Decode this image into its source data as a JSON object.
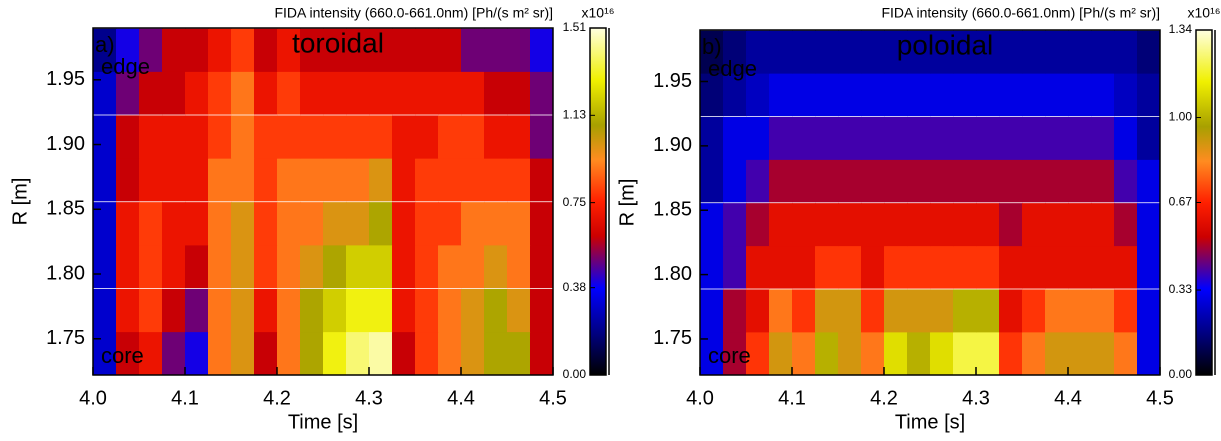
{
  "chart_data": [
    {
      "type": "heatmap",
      "title": "FIDA intensity (660.0-661.0nm) [Ph/(s m² sr)]",
      "x_label": "Time [s]",
      "y_label": "R [m]",
      "annotations": [
        "a)",
        "toroidal",
        "edge",
        "core"
      ],
      "colorbar_label": "x10¹⁶",
      "xlim": [
        4.0,
        4.5
      ],
      "xticks": [
        {
          "value": 4,
          "label": "4.0"
        },
        4.1,
        4.2,
        4.3,
        4.4,
        {
          "value": 4.5,
          "label": "4.5"
        }
      ],
      "ylim": [
        1.722,
        1.99
      ],
      "yticks": [
        1.75,
        {
          "value": 1.8,
          "label": "1.80"
        },
        1.85,
        {
          "value": 1.9,
          "label": "1.90"
        },
        1.95
      ],
      "clim": [
        0,
        1.51
      ],
      "cticks": [
        {
          "value": 0,
          "label": "0.00"
        },
        0.38,
        0.75,
        1.13,
        1.51
      ],
      "colormap": [
        {
          "at": 0,
          "color": "#000000"
        },
        {
          "at": 0.12,
          "color": "#000080"
        },
        {
          "at": 0.25,
          "color": "#0000ff"
        },
        {
          "at": 0.4,
          "color": "#cc0000"
        },
        {
          "at": 0.5,
          "color": "#ff2000"
        },
        {
          "at": 0.62,
          "color": "#ff8c20"
        },
        {
          "at": 0.72,
          "color": "#a8a000"
        },
        {
          "at": 0.85,
          "color": "#f0f000"
        },
        {
          "at": 1,
          "color": "#ffffe0"
        }
      ],
      "x": [
        4.0125,
        4.0375,
        4.0625,
        4.0875,
        4.1125,
        4.1375,
        4.1625,
        4.1875,
        4.2125,
        4.2375,
        4.2625,
        4.2875,
        4.3125,
        4.3375,
        4.3625,
        4.3875,
        4.4125,
        4.4375,
        4.4625,
        4.4875
      ],
      "y": [
        1.739,
        1.772,
        1.806,
        1.839,
        1.873,
        1.906,
        1.94,
        1.973
      ],
      "z": [
        [
          0.3,
          0.6,
          0.7,
          0.5,
          0.4,
          0.9,
          1.0,
          0.6,
          0.9,
          1.1,
          1.3,
          1.4,
          1.45,
          0.6,
          0.8,
          0.9,
          1.0,
          1.1,
          1.1,
          0.6
        ],
        [
          0.3,
          0.7,
          0.8,
          0.6,
          0.5,
          0.9,
          1.0,
          0.7,
          0.9,
          1.1,
          1.2,
          1.3,
          1.3,
          0.7,
          0.8,
          0.9,
          1.0,
          1.1,
          1.0,
          0.6
        ],
        [
          0.3,
          0.7,
          0.8,
          0.7,
          0.6,
          0.9,
          1.0,
          0.8,
          0.9,
          1.0,
          1.1,
          1.2,
          1.2,
          0.7,
          0.8,
          0.9,
          0.9,
          1.0,
          0.9,
          0.6
        ],
        [
          0.3,
          0.7,
          0.8,
          0.7,
          0.7,
          0.9,
          1.0,
          0.8,
          0.9,
          0.9,
          1.0,
          1.0,
          1.1,
          0.7,
          0.8,
          0.8,
          0.9,
          0.9,
          0.9,
          0.6
        ],
        [
          0.3,
          0.6,
          0.7,
          0.7,
          0.7,
          0.9,
          0.9,
          0.8,
          0.9,
          0.9,
          0.9,
          0.9,
          1.0,
          0.7,
          0.8,
          0.8,
          0.8,
          0.8,
          0.8,
          0.6
        ],
        [
          0.3,
          0.6,
          0.7,
          0.7,
          0.7,
          0.8,
          0.9,
          0.8,
          0.8,
          0.8,
          0.8,
          0.8,
          0.8,
          0.7,
          0.7,
          0.8,
          0.8,
          0.7,
          0.7,
          0.5
        ],
        [
          0.3,
          0.5,
          0.6,
          0.6,
          0.7,
          0.8,
          0.9,
          0.7,
          0.8,
          0.7,
          0.7,
          0.7,
          0.7,
          0.7,
          0.7,
          0.7,
          0.7,
          0.6,
          0.6,
          0.5
        ],
        [
          0.2,
          0.4,
          0.5,
          0.6,
          0.6,
          0.7,
          0.8,
          0.6,
          0.7,
          0.6,
          0.6,
          0.6,
          0.6,
          0.6,
          0.6,
          0.6,
          0.5,
          0.5,
          0.5,
          0.4
        ]
      ]
    },
    {
      "type": "heatmap",
      "title": "FIDA intensity (660.0-661.0nm) [Ph/(s m² sr)]",
      "x_label": "Time [s]",
      "y_label": "R [m]",
      "annotations": [
        "b)",
        "poloidal",
        "edge",
        "core"
      ],
      "colorbar_label": "x10¹⁶",
      "xlim": [
        4.0,
        4.5
      ],
      "xticks": [
        {
          "value": 4,
          "label": "4.0"
        },
        4.1,
        4.2,
        4.3,
        4.4,
        {
          "value": 4.5,
          "label": "4.5"
        }
      ],
      "ylim": [
        1.722,
        1.99
      ],
      "yticks": [
        1.75,
        {
          "value": 1.8,
          "label": "1.80"
        },
        1.85,
        {
          "value": 1.9,
          "label": "1.90"
        },
        1.95
      ],
      "clim": [
        0,
        1.34
      ],
      "cticks": [
        {
          "value": 0,
          "label": "0.00"
        },
        0.33,
        0.67,
        {
          "value": 1,
          "label": "1.00"
        },
        1.34
      ],
      "colormap": [
        {
          "at": 0,
          "color": "#000000"
        },
        {
          "at": 0.12,
          "color": "#000080"
        },
        {
          "at": 0.25,
          "color": "#0000ff"
        },
        {
          "at": 0.4,
          "color": "#cc0000"
        },
        {
          "at": 0.5,
          "color": "#ff2000"
        },
        {
          "at": 0.62,
          "color": "#ff8c20"
        },
        {
          "at": 0.72,
          "color": "#a8a000"
        },
        {
          "at": 0.85,
          "color": "#f0f000"
        },
        {
          "at": 1,
          "color": "#ffffe0"
        }
      ],
      "x": [
        4.0125,
        4.0375,
        4.0625,
        4.0875,
        4.1125,
        4.1375,
        4.1625,
        4.1875,
        4.2125,
        4.2375,
        4.2625,
        4.2875,
        4.3125,
        4.3375,
        4.3625,
        4.3875,
        4.4125,
        4.4375,
        4.4625,
        4.4875
      ],
      "y": [
        1.739,
        1.772,
        1.806,
        1.839,
        1.873,
        1.906,
        1.94,
        1.973
      ],
      "z": [
        [
          0.3,
          0.5,
          0.7,
          0.9,
          0.8,
          1.0,
          0.9,
          0.8,
          1.1,
          1.0,
          1.1,
          1.2,
          1.2,
          0.7,
          0.8,
          0.9,
          0.9,
          0.9,
          0.8,
          0.3
        ],
        [
          0.3,
          0.5,
          0.6,
          0.8,
          0.7,
          0.9,
          0.9,
          0.7,
          0.9,
          0.9,
          0.9,
          1.0,
          1.0,
          0.6,
          0.7,
          0.8,
          0.8,
          0.8,
          0.7,
          0.3
        ],
        [
          0.3,
          0.4,
          0.6,
          0.6,
          0.6,
          0.7,
          0.7,
          0.6,
          0.7,
          0.7,
          0.7,
          0.7,
          0.7,
          0.6,
          0.6,
          0.6,
          0.6,
          0.6,
          0.6,
          0.3
        ],
        [
          0.3,
          0.4,
          0.5,
          0.6,
          0.6,
          0.6,
          0.6,
          0.6,
          0.6,
          0.6,
          0.6,
          0.6,
          0.6,
          0.5,
          0.6,
          0.6,
          0.6,
          0.6,
          0.5,
          0.3
        ],
        [
          0.2,
          0.3,
          0.4,
          0.5,
          0.5,
          0.5,
          0.5,
          0.5,
          0.5,
          0.5,
          0.5,
          0.5,
          0.5,
          0.5,
          0.5,
          0.5,
          0.5,
          0.5,
          0.4,
          0.3
        ],
        [
          0.2,
          0.3,
          0.3,
          0.4,
          0.4,
          0.4,
          0.4,
          0.4,
          0.4,
          0.4,
          0.4,
          0.4,
          0.4,
          0.4,
          0.4,
          0.4,
          0.4,
          0.4,
          0.3,
          0.2
        ],
        [
          0.15,
          0.2,
          0.25,
          0.3,
          0.3,
          0.3,
          0.3,
          0.3,
          0.3,
          0.3,
          0.3,
          0.3,
          0.3,
          0.3,
          0.3,
          0.3,
          0.3,
          0.3,
          0.25,
          0.2
        ],
        [
          0.1,
          0.15,
          0.2,
          0.2,
          0.2,
          0.2,
          0.2,
          0.2,
          0.2,
          0.2,
          0.2,
          0.2,
          0.2,
          0.2,
          0.2,
          0.2,
          0.2,
          0.2,
          0.2,
          0.15
        ]
      ]
    }
  ]
}
